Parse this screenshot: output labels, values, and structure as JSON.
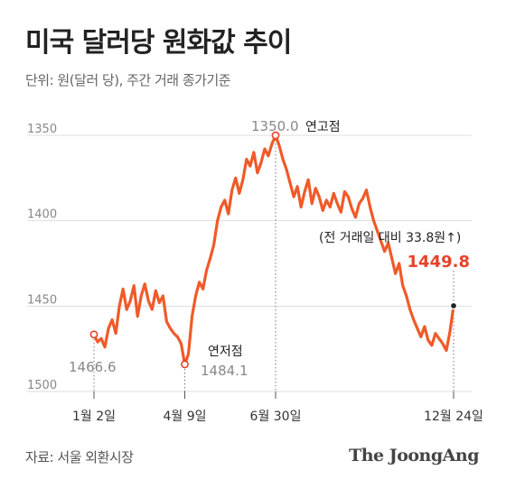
{
  "title": "미국 달러당 원화값 추이",
  "subtitle": "단위: 원(달러 당), 주간 거래 종가기준",
  "source": "자료: 서울 외환시장",
  "logo": "The JoongAng",
  "colors": {
    "line": "#f05a28",
    "accent": "#e8412a",
    "grid": "#dddddd"
  },
  "chart_data": {
    "type": "line",
    "title": "미국 달러당 원화값 추이",
    "ylabel": "",
    "xlabel": "",
    "y_inverted": true,
    "ylim": [
      1350,
      1500
    ],
    "yticks": [
      1350,
      1400,
      1450,
      1500
    ],
    "grid": true,
    "xticks": [
      "1월 2일",
      "4월 9일",
      "6월 30일",
      "12월 24일"
    ],
    "series": [
      {
        "values": [
          1466.6,
          1471,
          1469,
          1474,
          1463,
          1458,
          1466,
          1450,
          1440,
          1452,
          1447,
          1438,
          1456,
          1444,
          1437,
          1447,
          1452,
          1441,
          1448,
          1444,
          1459,
          1463,
          1466,
          1468,
          1472,
          1484.1,
          1478,
          1456,
          1444,
          1436,
          1440,
          1429,
          1422,
          1414,
          1400,
          1392,
          1388,
          1396,
          1382,
          1375,
          1384,
          1376,
          1364,
          1368,
          1360,
          1372,
          1366,
          1358,
          1362,
          1355,
          1350.0,
          1356,
          1364,
          1370,
          1378,
          1386,
          1380,
          1392,
          1383,
          1376,
          1390,
          1381,
          1386,
          1394,
          1388,
          1392,
          1384,
          1390,
          1395,
          1383,
          1386,
          1393,
          1398,
          1390,
          1387,
          1382,
          1392,
          1400,
          1406,
          1412,
          1418,
          1413,
          1422,
          1431,
          1425,
          1438,
          1444,
          1452,
          1458,
          1463,
          1468,
          1462,
          1470,
          1473,
          1466,
          1469,
          1472,
          1476,
          1465,
          1449.8
        ]
      }
    ],
    "annotations": [
      {
        "label": "",
        "value": "1466.6"
      },
      {
        "label": "연저점",
        "value": "1484.1"
      },
      {
        "label": "연고점",
        "value": "1350.0"
      },
      {
        "label": "(전 거래일 대비 33.8원↑)",
        "value": "1449.8"
      }
    ]
  }
}
